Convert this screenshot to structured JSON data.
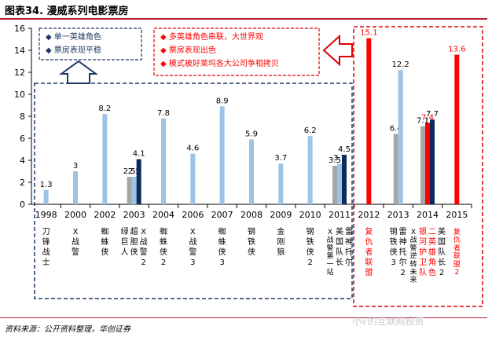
{
  "header": {
    "title": "图表34.  漫威系列电影票房"
  },
  "footer": {
    "source": "资料来源：公开资料整理，华创证券",
    "watermark": "小√的互联网投资"
  },
  "annotations": {
    "left": [
      "单一英雄角色",
      "票房表现平稳"
    ],
    "right": [
      "多英雄角色串联，大世界观",
      "票房表现出色",
      "模式被好莱坞各大公司争相拷贝"
    ]
  },
  "colors": {
    "light_blue": "#9dc3e6",
    "gray": "#a6a6a6",
    "dark_navy": "#0e2a5c",
    "red": "#ff0000",
    "dark_red_text": "#c00000"
  },
  "chart_data": {
    "type": "bar",
    "ylim": [
      0,
      16
    ],
    "yticks": [
      0,
      2,
      4,
      6,
      8,
      10,
      12,
      14,
      16
    ],
    "years": [
      "1998",
      "2000",
      "2002",
      "2003",
      "2004",
      "2006",
      "2007",
      "2008",
      "2009",
      "2010",
      "2011",
      "2012",
      "2013",
      "2014",
      "2015"
    ],
    "bars": [
      {
        "year": "1998",
        "value": 1.3,
        "color": "light_blue",
        "label": "1.3"
      },
      {
        "year": "2000",
        "value": 3,
        "color": "light_blue",
        "label": "3"
      },
      {
        "year": "2002",
        "value": 8.2,
        "color": "light_blue",
        "label": "8.2"
      },
      {
        "year": "2003",
        "value": 2.5,
        "color": "gray",
        "label": "2.5"
      },
      {
        "year": "2003",
        "value": 2.5,
        "color": "light_blue",
        "label": "2.5"
      },
      {
        "year": "2003",
        "value": 4.1,
        "color": "dark_navy",
        "label": "4.1"
      },
      {
        "year": "2004",
        "value": 7.8,
        "color": "light_blue",
        "label": "7.8"
      },
      {
        "year": "2006",
        "value": 4.6,
        "color": "light_blue",
        "label": "4.6"
      },
      {
        "year": "2007",
        "value": 8.9,
        "color": "light_blue",
        "label": "8.9"
      },
      {
        "year": "2008",
        "value": 5.9,
        "color": "light_blue",
        "label": "5.9"
      },
      {
        "year": "2009",
        "value": 3.7,
        "color": "light_blue",
        "label": "3.7"
      },
      {
        "year": "2010",
        "value": 6.2,
        "color": "light_blue",
        "label": "6.2"
      },
      {
        "year": "2011",
        "value": 3.5,
        "color": "gray",
        "label": "3.5"
      },
      {
        "year": "2011",
        "value": 3.7,
        "color": "light_blue",
        "label": "3.7"
      },
      {
        "year": "2011",
        "value": 4.5,
        "color": "dark_navy",
        "label": "4.5"
      },
      {
        "year": "2012",
        "value": 15.1,
        "color": "red",
        "label": "15.1"
      },
      {
        "year": "2013",
        "value": 6.4,
        "color": "gray",
        "label": "6.4"
      },
      {
        "year": "2013",
        "value": 12.2,
        "color": "light_blue",
        "label": "12.2"
      },
      {
        "year": "2014",
        "value": 7.1,
        "color": "gray",
        "label": "7.1"
      },
      {
        "year": "2014",
        "value": 7.4,
        "color": "red",
        "label": "7.4"
      },
      {
        "year": "2014",
        "value": 7.7,
        "color": "dark_navy",
        "label": "7.7"
      },
      {
        "year": "2015",
        "value": 13.6,
        "color": "red",
        "label": "13.6"
      }
    ],
    "movies": [
      {
        "year": "1998",
        "titles": [
          {
            "text": "刀锋战士",
            "red": false
          }
        ]
      },
      {
        "year": "2000",
        "titles": [
          {
            "text": "X战警",
            "red": false
          }
        ]
      },
      {
        "year": "2002",
        "titles": [
          {
            "text": "蜘蛛侠",
            "red": false
          }
        ]
      },
      {
        "year": "2003",
        "titles": [
          {
            "text": "绿巨人",
            "red": false
          },
          {
            "text": "超胆侠",
            "red": false
          },
          {
            "text": "X战警2",
            "red": false
          }
        ]
      },
      {
        "year": "2004",
        "titles": [
          {
            "text": "蜘蛛侠2",
            "red": false
          }
        ]
      },
      {
        "year": "2006",
        "titles": [
          {
            "text": "X战警3",
            "red": false
          }
        ]
      },
      {
        "year": "2007",
        "titles": [
          {
            "text": "蜘蛛侠3",
            "red": false
          }
        ]
      },
      {
        "year": "2008",
        "titles": [
          {
            "text": "钢铁侠",
            "red": false
          }
        ]
      },
      {
        "year": "2009",
        "titles": [
          {
            "text": "金刚狼",
            "red": false
          }
        ]
      },
      {
        "year": "2010",
        "titles": [
          {
            "text": "钢铁侠2",
            "red": false
          }
        ]
      },
      {
        "year": "2011",
        "titles": [
          {
            "text": "X战警第一站",
            "red": false
          },
          {
            "text": "美国队长",
            "red": false
          },
          {
            "text": "雷神托尔",
            "red": false
          }
        ]
      },
      {
        "year": "2012",
        "titles": [
          {
            "text": "复仇者联盟",
            "red": true
          }
        ]
      },
      {
        "year": "2013",
        "titles": [
          {
            "text": "钢铁侠3",
            "red": false
          },
          {
            "text": "雷神托尔2",
            "red": false
          }
        ]
      },
      {
        "year": "2014",
        "titles": [
          {
            "text": "X战警逆转未来",
            "red": false
          },
          {
            "text": "银河护卫队",
            "red": true
          },
          {
            "text": "二英雄角色",
            "red": true
          },
          {
            "text": "美国队长2",
            "red": false
          }
        ]
      },
      {
        "year": "2015",
        "titles": [
          {
            "text": "复仇者联盟2",
            "red": true
          }
        ]
      }
    ]
  }
}
